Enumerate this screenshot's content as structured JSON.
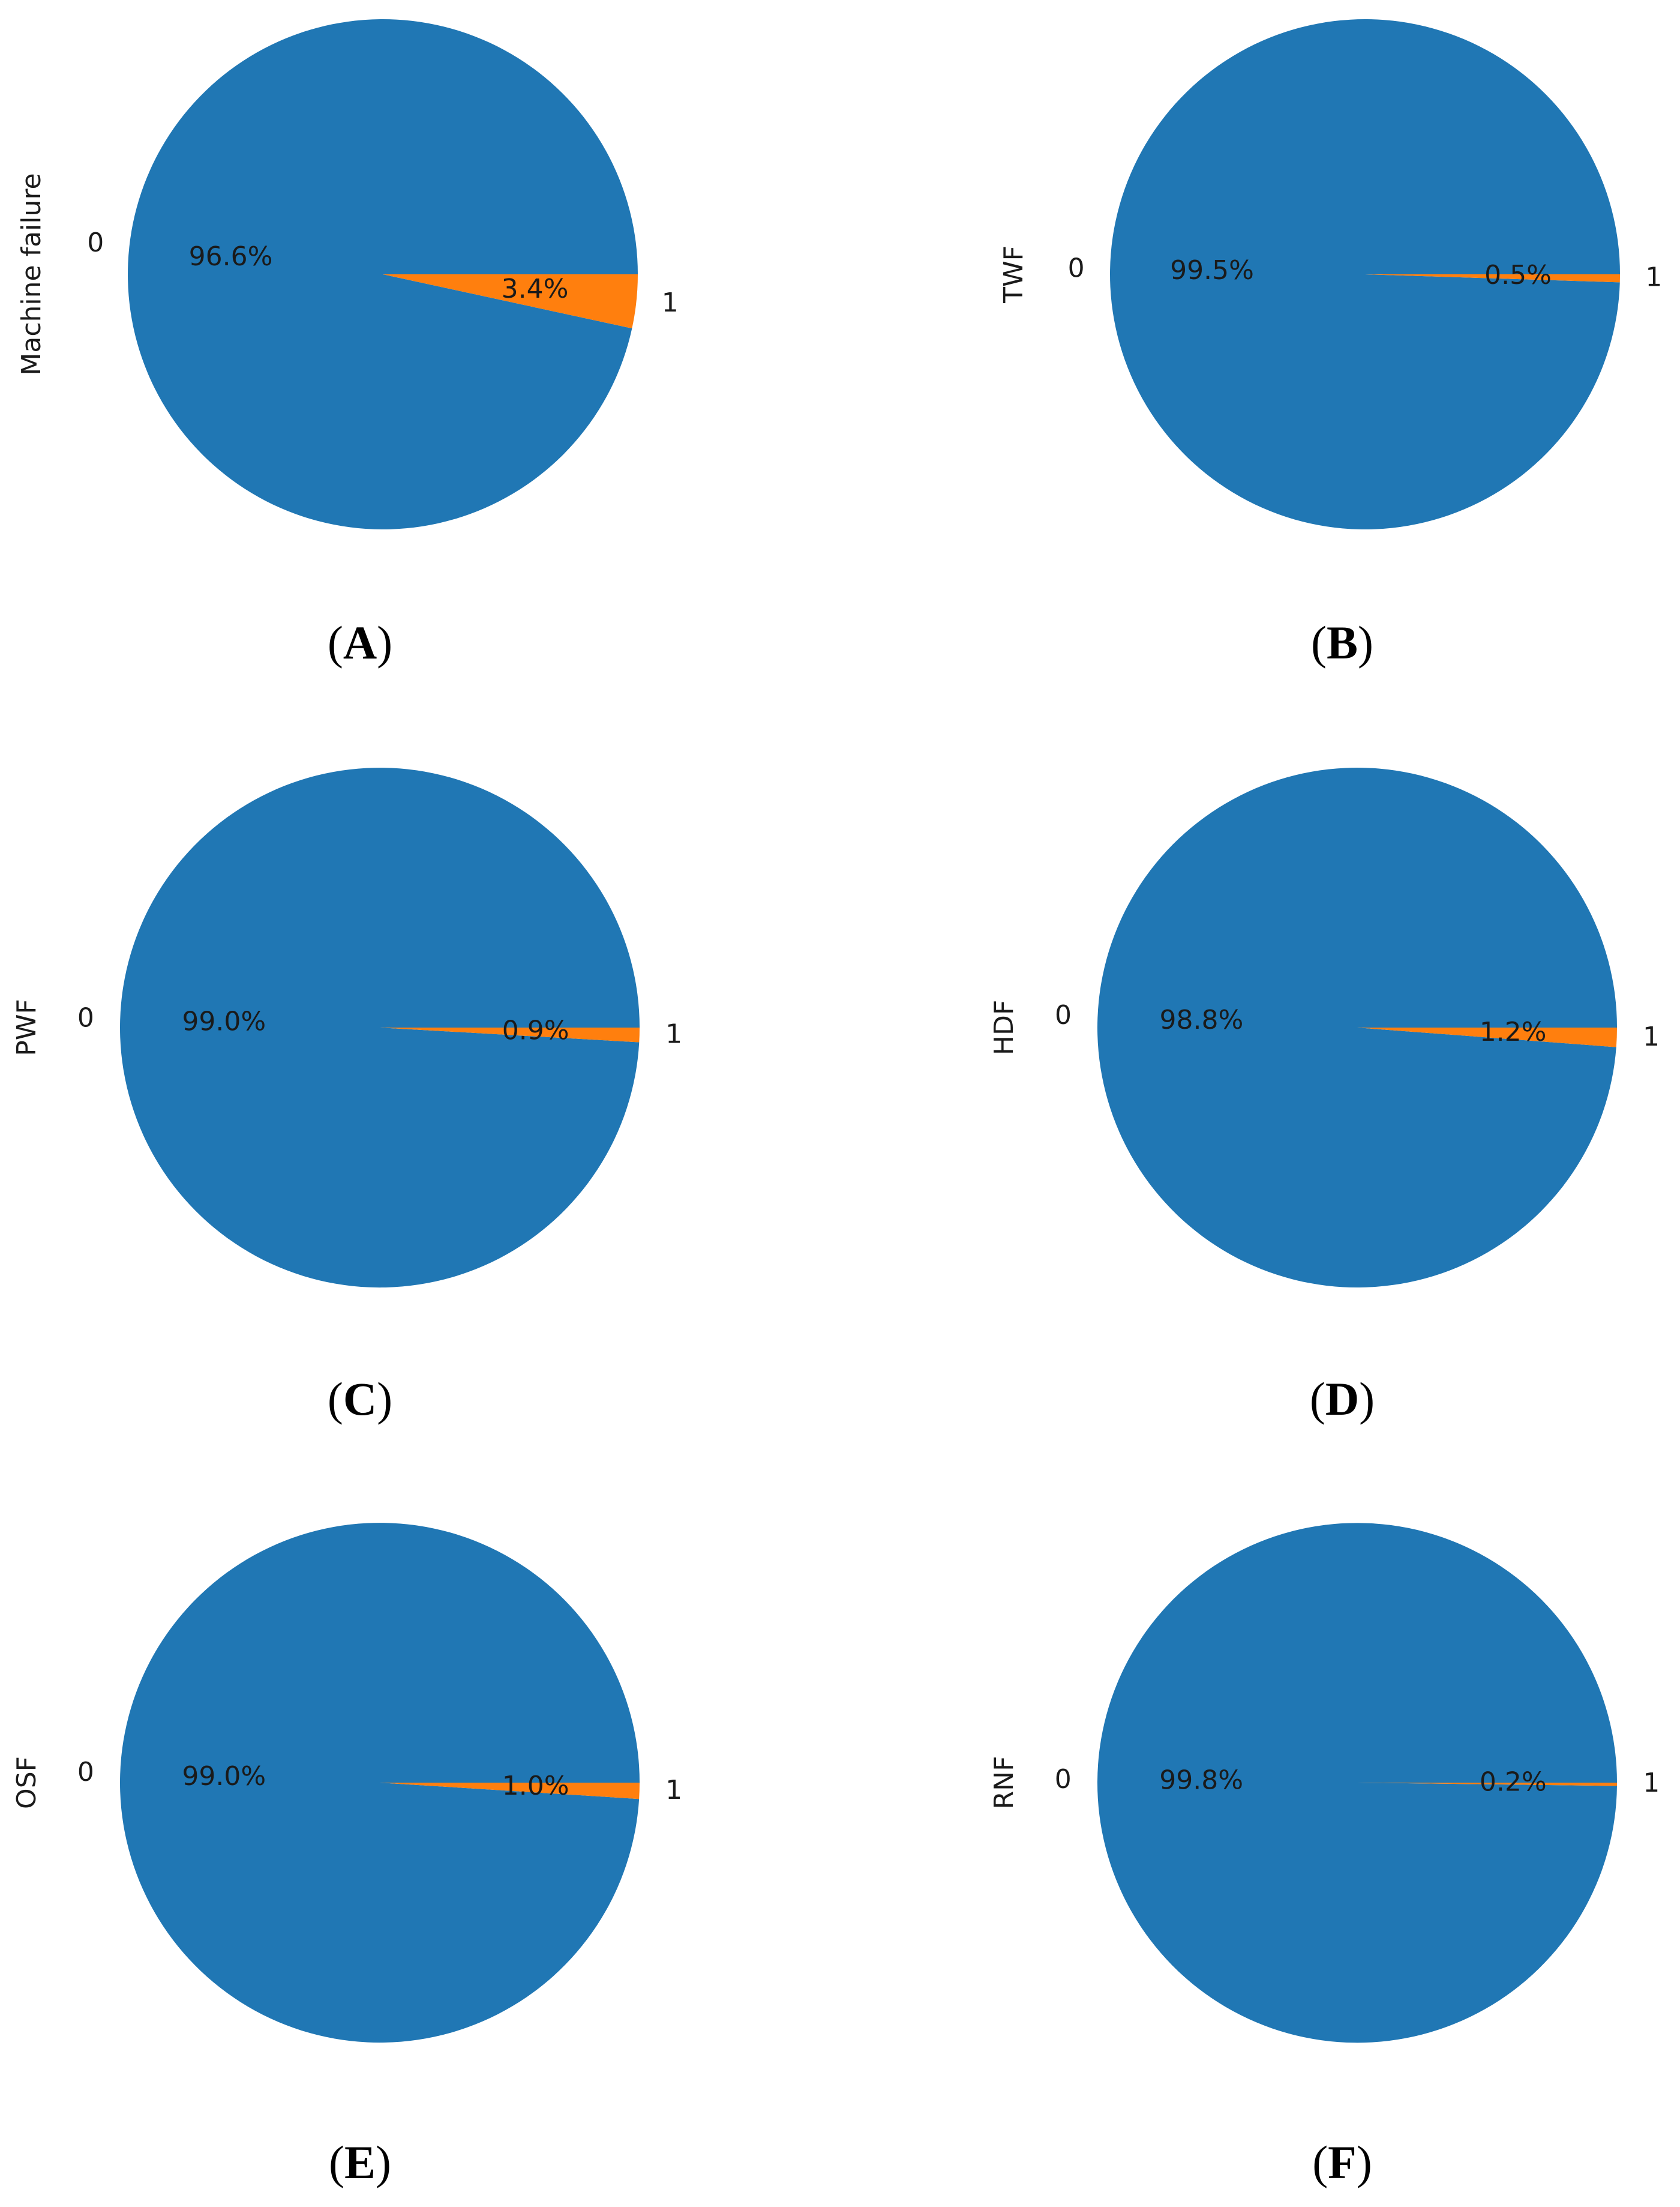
{
  "colors": {
    "class_0": "#2077b4",
    "class_1": "#ff7f0e"
  },
  "chart_data": [
    {
      "type": "pie",
      "panel": "A",
      "ylabel": "Machine failure",
      "categories": [
        "0",
        "1"
      ],
      "values": [
        96.6,
        3.4
      ],
      "pct_labels": [
        "96.6%",
        "3.4%"
      ]
    },
    {
      "type": "pie",
      "panel": "B",
      "ylabel": "TWF",
      "categories": [
        "0",
        "1"
      ],
      "values": [
        99.5,
        0.5
      ],
      "pct_labels": [
        "99.5%",
        "0.5%"
      ]
    },
    {
      "type": "pie",
      "panel": "C",
      "ylabel": "PWF",
      "categories": [
        "0",
        "1"
      ],
      "values": [
        99.0,
        0.9
      ],
      "pct_labels": [
        "99.0%",
        "0.9%"
      ]
    },
    {
      "type": "pie",
      "panel": "D",
      "ylabel": "HDF",
      "categories": [
        "0",
        "1"
      ],
      "values": [
        98.8,
        1.2
      ],
      "pct_labels": [
        "98.8%",
        "1.2%"
      ]
    },
    {
      "type": "pie",
      "panel": "E",
      "ylabel": "OSF",
      "categories": [
        "0",
        "1"
      ],
      "values": [
        99.0,
        1.0
      ],
      "pct_labels": [
        "99.0%",
        "1.0%"
      ]
    },
    {
      "type": "pie",
      "panel": "F",
      "ylabel": "RNF",
      "categories": [
        "0",
        "1"
      ],
      "values": [
        99.8,
        0.2
      ],
      "pct_labels": [
        "99.8%",
        "0.2%"
      ]
    }
  ]
}
